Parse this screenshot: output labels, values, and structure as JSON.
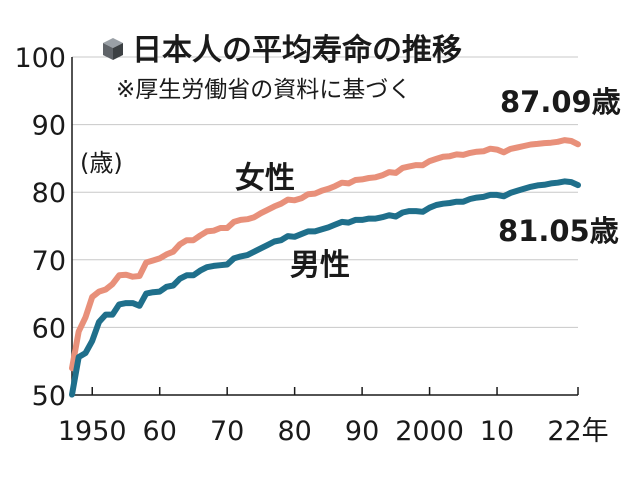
{
  "chart_data": {
    "type": "line",
    "title": "日本人の平均寿命の推移",
    "subtitle": "※厚生労働省の資料に基づく",
    "ylabel": "(歳)",
    "xlabel": "",
    "ylim": [
      50,
      100
    ],
    "xlim": [
      1947,
      2022
    ],
    "y_ticks": [
      "50",
      "60",
      "70",
      "80",
      "90",
      "100"
    ],
    "x_ticks": [
      {
        "x": 1950,
        "label": "1950"
      },
      {
        "x": 1960,
        "label": "60"
      },
      {
        "x": 1970,
        "label": "70"
      },
      {
        "x": 1980,
        "label": "80"
      },
      {
        "x": 1990,
        "label": "90"
      },
      {
        "x": 2000,
        "label": "2000"
      },
      {
        "x": 2010,
        "label": "10"
      },
      {
        "x": 2022,
        "label": "22年"
      }
    ],
    "grid": true,
    "series": [
      {
        "name": "女性",
        "color": "#e8907a",
        "end_label": "87.09歳",
        "x": [
          1947,
          1948,
          1949,
          1950,
          1951,
          1952,
          1953,
          1954,
          1955,
          1956,
          1957,
          1958,
          1959,
          1960,
          1961,
          1962,
          1963,
          1964,
          1965,
          1966,
          1967,
          1968,
          1969,
          1970,
          1971,
          1972,
          1973,
          1974,
          1975,
          1976,
          1977,
          1978,
          1979,
          1980,
          1981,
          1982,
          1983,
          1984,
          1985,
          1986,
          1987,
          1988,
          1989,
          1990,
          1991,
          1992,
          1993,
          1994,
          1995,
          1996,
          1997,
          1998,
          1999,
          2000,
          2001,
          2002,
          2003,
          2004,
          2005,
          2006,
          2007,
          2008,
          2009,
          2010,
          2011,
          2012,
          2013,
          2014,
          2015,
          2016,
          2017,
          2018,
          2019,
          2020,
          2021,
          2022
        ],
        "values": [
          53.96,
          59.4,
          61.5,
          64.5,
          65.3,
          65.6,
          66.4,
          67.7,
          67.8,
          67.5,
          67.6,
          69.6,
          69.9,
          70.2,
          70.8,
          71.2,
          72.3,
          72.9,
          72.9,
          73.6,
          74.2,
          74.3,
          74.7,
          74.7,
          75.6,
          75.9,
          76.0,
          76.3,
          76.9,
          77.4,
          77.9,
          78.3,
          78.9,
          78.8,
          79.1,
          79.7,
          79.8,
          80.2,
          80.5,
          80.9,
          81.4,
          81.3,
          81.8,
          81.9,
          82.1,
          82.2,
          82.5,
          82.98,
          82.85,
          83.59,
          83.82,
          84.01,
          83.99,
          84.6,
          84.93,
          85.23,
          85.33,
          85.59,
          85.52,
          85.81,
          85.99,
          86.05,
          86.44,
          86.3,
          85.9,
          86.41,
          86.61,
          86.83,
          87.05,
          87.14,
          87.26,
          87.32,
          87.45,
          87.71,
          87.57,
          87.09
        ]
      },
      {
        "name": "男性",
        "color": "#1f6f8b",
        "end_label": "81.05歳",
        "x": [
          1947,
          1948,
          1949,
          1950,
          1951,
          1952,
          1953,
          1954,
          1955,
          1956,
          1957,
          1958,
          1959,
          1960,
          1961,
          1962,
          1963,
          1964,
          1965,
          1966,
          1967,
          1968,
          1969,
          1970,
          1971,
          1972,
          1973,
          1974,
          1975,
          1976,
          1977,
          1978,
          1979,
          1980,
          1981,
          1982,
          1983,
          1984,
          1985,
          1986,
          1987,
          1988,
          1989,
          1990,
          1991,
          1992,
          1993,
          1994,
          1995,
          1996,
          1997,
          1998,
          1999,
          2000,
          2001,
          2002,
          2003,
          2004,
          2005,
          2006,
          2007,
          2008,
          2009,
          2010,
          2011,
          2012,
          2013,
          2014,
          2015,
          2016,
          2017,
          2018,
          2019,
          2020,
          2021,
          2022
        ],
        "values": [
          50.06,
          55.6,
          56.2,
          58.0,
          60.8,
          61.9,
          61.9,
          63.4,
          63.6,
          63.6,
          63.2,
          65.0,
          65.2,
          65.3,
          66.0,
          66.2,
          67.2,
          67.7,
          67.7,
          68.4,
          68.9,
          69.1,
          69.2,
          69.3,
          70.2,
          70.5,
          70.7,
          71.2,
          71.7,
          72.2,
          72.7,
          72.9,
          73.5,
          73.4,
          73.8,
          74.2,
          74.2,
          74.5,
          74.8,
          75.2,
          75.6,
          75.5,
          75.9,
          75.9,
          76.1,
          76.1,
          76.3,
          76.6,
          76.4,
          77.0,
          77.2,
          77.2,
          77.1,
          77.7,
          78.1,
          78.3,
          78.4,
          78.6,
          78.6,
          79.0,
          79.2,
          79.3,
          79.6,
          79.6,
          79.4,
          79.9,
          80.2,
          80.5,
          80.8,
          81.0,
          81.1,
          81.3,
          81.4,
          81.6,
          81.5,
          81.05
        ]
      }
    ]
  },
  "icon": "cube-icon"
}
